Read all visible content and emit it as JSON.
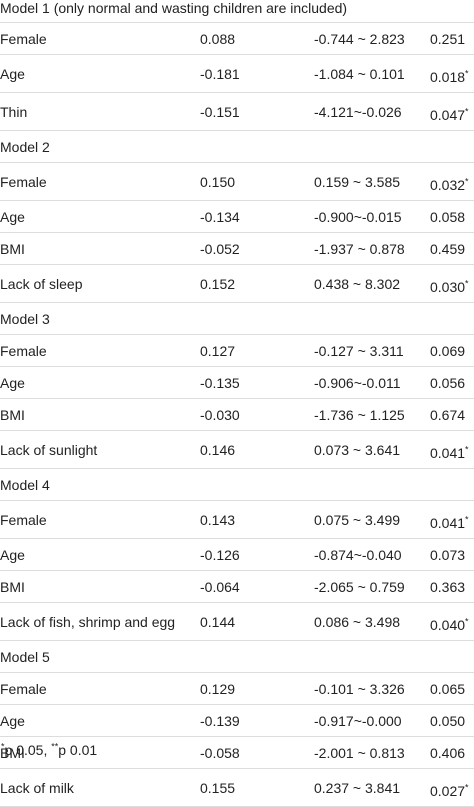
{
  "groups": [
    {
      "title": "Model 1 (only normal and wasting children are included)",
      "rows": [
        {
          "variable": "Female",
          "beta": "0.088",
          "ci": "-0.744 ~ 2.823",
          "p": "0.251",
          "sig": ""
        },
        {
          "variable": "Age",
          "beta": "-0.181",
          "ci": "-1.084 ~ 0.101",
          "p": "0.018",
          "sig": "*"
        },
        {
          "variable": "Thin",
          "beta": "-0.151",
          "ci": "-4.121~-0.026",
          "p": "0.047",
          "sig": "*"
        }
      ]
    },
    {
      "title": "Model 2",
      "rows": [
        {
          "variable": "Female",
          "beta": "0.150",
          "ci": "0.159 ~ 3.585",
          "p": "0.032",
          "sig": "*"
        },
        {
          "variable": "Age",
          "beta": "-0.134",
          "ci": "-0.900~-0.015",
          "p": "0.058",
          "sig": ""
        },
        {
          "variable": "BMI",
          "beta": "-0.052",
          "ci": "-1.937 ~ 0.878",
          "p": "0.459",
          "sig": ""
        },
        {
          "variable": "Lack of sleep",
          "beta": "0.152",
          "ci": "0.438 ~ 8.302",
          "p": "0.030",
          "sig": "*"
        }
      ]
    },
    {
      "title": "Model 3",
      "rows": [
        {
          "variable": "Female",
          "beta": "0.127",
          "ci": "-0.127 ~ 3.311",
          "p": "0.069",
          "sig": ""
        },
        {
          "variable": "Age",
          "beta": "-0.135",
          "ci": "-0.906~-0.011",
          "p": "0.056",
          "sig": ""
        },
        {
          "variable": "BMI",
          "beta": "-0.030",
          "ci": "-1.736 ~ 1.125",
          "p": "0.674",
          "sig": ""
        },
        {
          "variable": "Lack of sunlight",
          "beta": "0.146",
          "ci": "0.073 ~ 3.641",
          "p": "0.041",
          "sig": "*"
        }
      ]
    },
    {
      "title": "Model 4",
      "rows": [
        {
          "variable": "Female",
          "beta": "0.143",
          "ci": "0.075 ~ 3.499",
          "p": "0.041",
          "sig": "*"
        },
        {
          "variable": "Age",
          "beta": "-0.126",
          "ci": "-0.874~-0.040",
          "p": "0.073",
          "sig": ""
        },
        {
          "variable": "BMI",
          "beta": "-0.064",
          "ci": "-2.065 ~ 0.759",
          "p": "0.363",
          "sig": ""
        },
        {
          "variable": "Lack of fish, shrimp and egg",
          "beta": "0.144",
          "ci": "0.086 ~ 3.498",
          "p": "0.040",
          "sig": "*"
        }
      ]
    },
    {
      "title": "Model 5",
      "rows": [
        {
          "variable": "Female",
          "beta": "0.129",
          "ci": "-0.101 ~ 3.326",
          "p": "0.065",
          "sig": ""
        },
        {
          "variable": "Age",
          "beta": "-0.139",
          "ci": "-0.917~-0.000",
          "p": "0.050",
          "sig": ""
        },
        {
          "variable": "BMI",
          "beta": "-0.058",
          "ci": "-2.001 ~ 0.813",
          "p": "0.406",
          "sig": ""
        },
        {
          "variable": "Lack of milk",
          "beta": "0.155",
          "ci": "0.237 ~ 3.841",
          "p": "0.027",
          "sig": "*"
        }
      ]
    }
  ],
  "footnote": {
    "sig1_marker": "*",
    "sig1_text": "p 0.05, ",
    "sig2_marker": "**",
    "sig2_text": "p 0.01"
  }
}
